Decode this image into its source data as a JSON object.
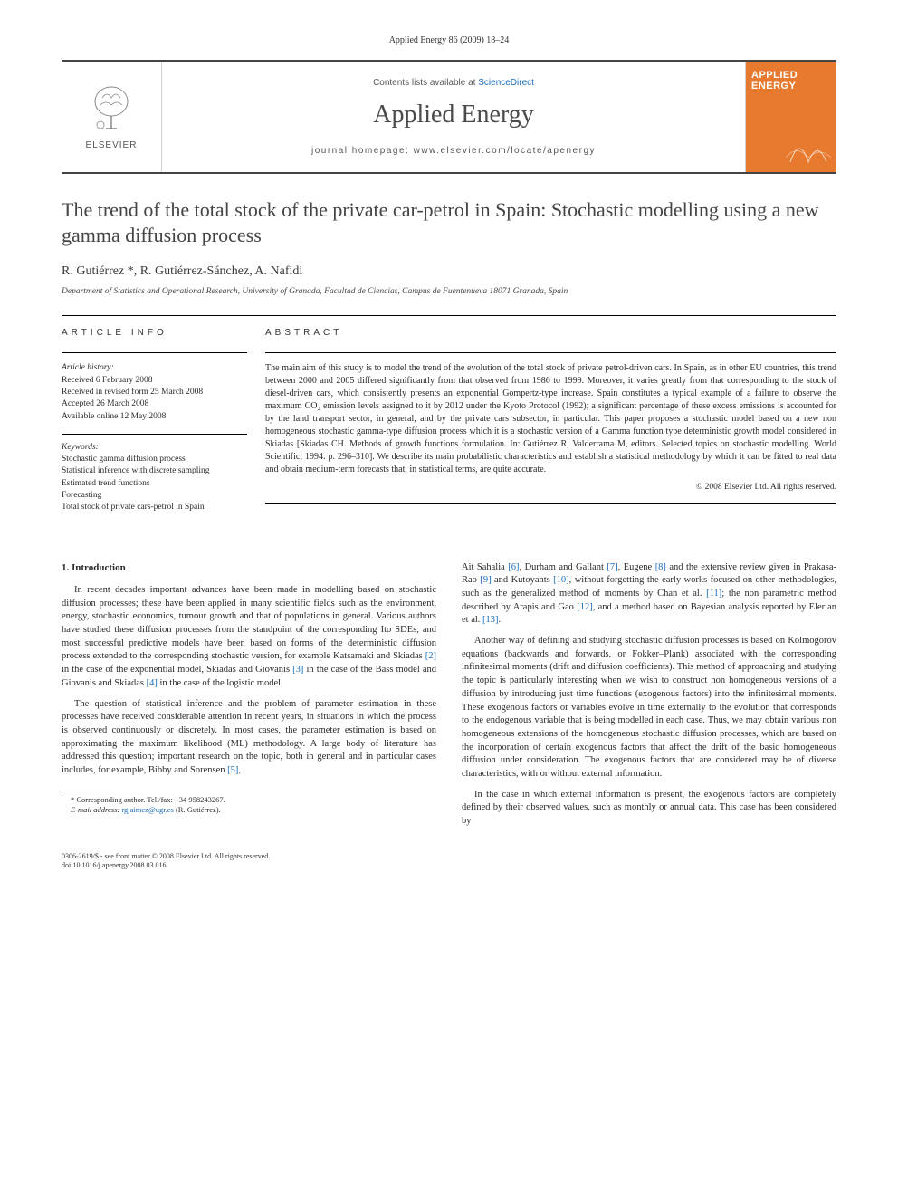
{
  "header": {
    "citation": "Applied Energy 86 (2009) 18–24",
    "contents_prefix": "Contents lists available at ",
    "contents_link": "ScienceDirect",
    "journal": "Applied Energy",
    "homepage_prefix": "journal homepage: ",
    "homepage": "www.elsevier.com/locate/apenergy",
    "publisher": "ELSEVIER",
    "cover_title_line1": "APPLIED",
    "cover_title_line2": "ENERGY"
  },
  "article": {
    "title": "The trend of the total stock of the private car-petrol in Spain: Stochastic modelling using a new gamma diffusion process",
    "authors": "R. Gutiérrez *, R. Gutiérrez-Sánchez, A. Nafidi",
    "affiliation": "Department of Statistics and Operational Research, University of Granada, Facultad de Ciencias, Campus de Fuentenueva 18071 Granada, Spain"
  },
  "info": {
    "label": "ARTICLE INFO",
    "history_label": "Article history:",
    "history": [
      "Received 6 February 2008",
      "Received in revised form 25 March 2008",
      "Accepted 26 March 2008",
      "Available online 12 May 2008"
    ],
    "keywords_label": "Keywords:",
    "keywords": [
      "Stochastic gamma diffusion process",
      "Statistical inference with discrete sampling",
      "Estimated trend functions",
      "Forecasting",
      "Total stock of private cars-petrol in Spain"
    ]
  },
  "abstract": {
    "label": "ABSTRACT",
    "text": "The main aim of this study is to model the trend of the evolution of the total stock of private petrol-driven cars. In Spain, as in other EU countries, this trend between 2000 and 2005 differed significantly from that observed from 1986 to 1999. Moreover, it varies greatly from that corresponding to the stock of diesel-driven cars, which consistently presents an exponential Gompertz-type increase. Spain constitutes a typical example of a failure to observe the maximum CO₂ emission levels assigned to it by 2012 under the Kyoto Protocol (1992); a significant percentage of these excess emissions is accounted for by the land transport sector, in general, and by the private cars subsector, in particular. This paper proposes a stochastic model based on a new non homogeneous stochastic gamma-type diffusion process which it is a stochastic version of a Gamma function type deterministic growth model considered in Skiadas [Skiadas CH. Methods of growth functions formulation. In: Gutiérrez R, Valderrama M, editors. Selected topics on stochastic modelling. World Scientific; 1994. p. 296–310]. We describe its main probabilistic characteristics and establish a statistical methodology by which it can be fitted to real data and obtain medium-term forecasts that, in statistical terms, are quite accurate.",
    "copyright": "© 2008 Elsevier Ltd. All rights reserved."
  },
  "body": {
    "section_heading": "1. Introduction",
    "left_paragraphs": [
      "In recent decades important advances have been made in modelling based on stochastic diffusion processes; these have been applied in many scientific fields such as the environment, energy, stochastic economics, tumour growth and that of populations in general. Various authors have studied these diffusion processes from the standpoint of the corresponding Ito SDEs, and most successful predictive models have been based on forms of the deterministic diffusion process extended to the corresponding stochastic version, for example Katsamaki and Skiadas [2] in the case of the exponential model, Skiadas and Giovanis [3] in the case of the Bass model and Giovanis and Skiadas [4] in the case of the logistic model.",
      "The question of statistical inference and the problem of parameter estimation in these processes have received considerable attention in recent years, in situations in which the process is observed continuously or discretely. In most cases, the parameter estimation is based on approximating the maximum likelihood (ML) methodology. A large body of literature has addressed this question; important research on the topic, both in general and in particular cases includes, for example, Bibby and Sorensen [5],"
    ],
    "right_paragraphs": [
      "Ait Sahalia [6], Durham and Gallant [7], Eugene [8] and the extensive review given in Prakasa-Rao [9] and Kutoyants [10], without forgetting the early works focused on other methodologies, such as the generalized method of moments by Chan et al. [11]; the non parametric method described by Arapis and Gao [12], and a method based on Bayesian analysis reported by Elerian et al. [13].",
      "Another way of defining and studying stochastic diffusion processes is based on Kolmogorov equations (backwards and forwards, or Fokker–Plank) associated with the corresponding infinitesimal moments (drift and diffusion coefficients). This method of approaching and studying the topic is particularly interesting when we wish to construct non homogeneous versions of a diffusion by introducing just time functions (exogenous factors) into the infinitesimal moments. These exogenous factors or variables evolve in time externally to the evolution that corresponds to the endogenous variable that is being modelled in each case. Thus, we may obtain various non homogeneous extensions of the homogeneous stochastic diffusion processes, which are based on the incorporation of certain exogenous factors that affect the drift of the basic homogeneous diffusion under consideration. The exogenous factors that are considered may be of diverse characteristics, with or without external information.",
      "In the case in which external information is present, the exogenous factors are completely defined by their observed values, such as monthly or annual data. This case has been considered by"
    ]
  },
  "footnote": {
    "corr": "* Corresponding author. Tel./fax: +34 958243267.",
    "email_label": "E-mail address: ",
    "email": "rgjaimez@ugr.es",
    "email_suffix": " (R. Gutiérrez)."
  },
  "footer": {
    "line1": "0306-2619/$ - see front matter © 2008 Elsevier Ltd. All rights reserved.",
    "line2": "doi:10.1016/j.apenergy.2008.03.016"
  },
  "colors": {
    "link": "#1a6bb8",
    "cover": "#e77a2e",
    "rule": "#444444"
  }
}
